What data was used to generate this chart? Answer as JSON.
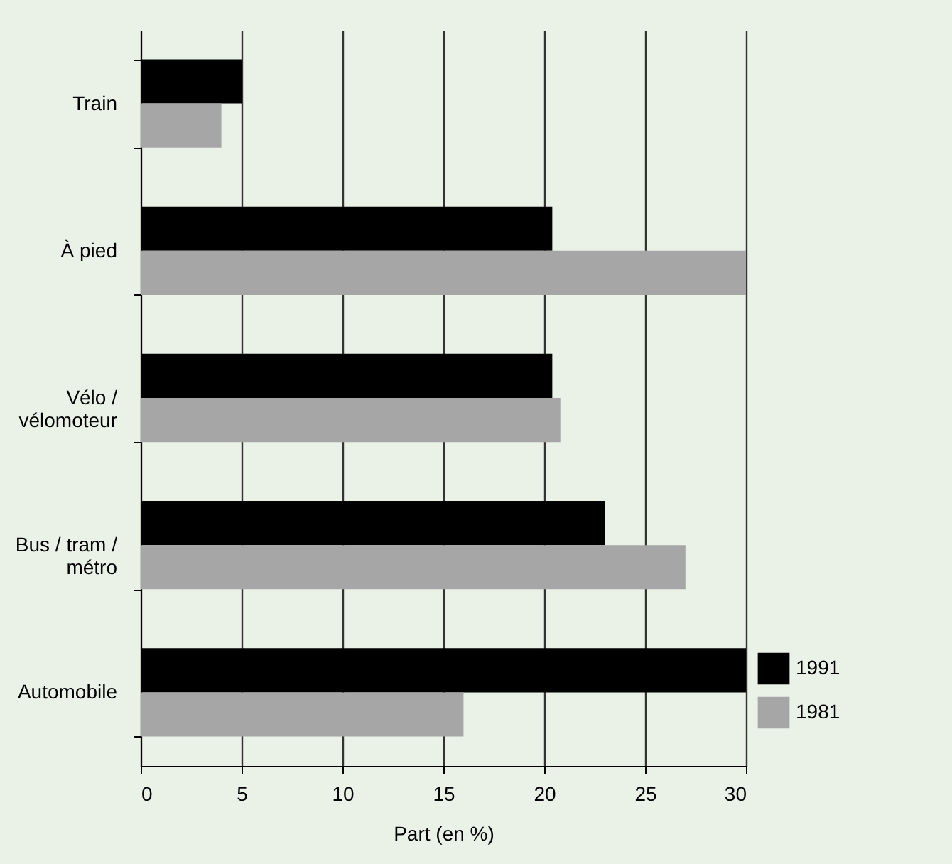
{
  "chart_data": {
    "type": "bar",
    "orientation": "horizontal",
    "xlabel": "Part (en %)",
    "categories": [
      "Train",
      "À pied",
      "Vélo / vélomoteur",
      "Bus / tram / métro",
      "Automobile"
    ],
    "series": [
      {
        "name": "1991",
        "color": "#000000",
        "values": [
          5,
          20.4,
          20.4,
          23,
          30
        ]
      },
      {
        "name": "1981",
        "color": "#a6a6a6",
        "values": [
          4,
          30,
          20.8,
          27,
          16
        ]
      }
    ],
    "xlim": [
      0,
      30
    ],
    "xticks": [
      0,
      5,
      10,
      15,
      20,
      25,
      30
    ],
    "grid": "x",
    "legend": "bottom right"
  }
}
